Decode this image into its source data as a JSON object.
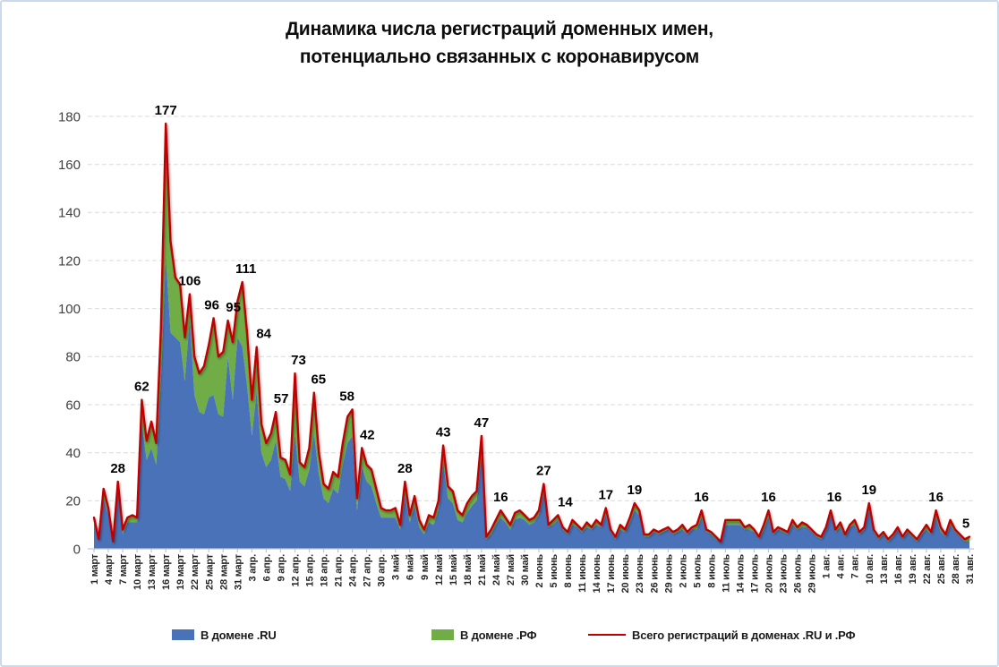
{
  "window": {
    "background": "#ffffff",
    "border_color": "#CBD9EC"
  },
  "chart_data": {
    "type": "area",
    "stacked": true,
    "title": "Динамика числа регистраций доменных имен, потенциально связанных с коронавирусом",
    "title_lines": [
      "Динамика числа регистраций доменных имен,",
      "потенциально связанных с коронавирусом"
    ],
    "xlabel": "",
    "ylabel": "",
    "ylim": [
      0,
      180
    ],
    "y_tick_step": 20,
    "grid": "horizontal-dashed",
    "legend_position": "bottom",
    "x_tick_interval_days": 3,
    "months": [
      {
        "name": "март",
        "days": 31
      },
      {
        "name": "апр.",
        "days": 30
      },
      {
        "name": "май",
        "days": 31
      },
      {
        "name": "июнь",
        "days": 30
      },
      {
        "name": "июль",
        "days": 31
      },
      {
        "name": "авг.",
        "days": 31
      }
    ],
    "x_first_label": "1 март",
    "x_last_label": "31 авг.",
    "series": [
      {
        "name": "В домене .RU",
        "type": "area",
        "color": "#4A72B8",
        "values": [
          11,
          3,
          21,
          14,
          2,
          24,
          6,
          11,
          11,
          11,
          52,
          37,
          42,
          35,
          70,
          122,
          90,
          88,
          86,
          70,
          96,
          64,
          57,
          56,
          63,
          64,
          56,
          55,
          80,
          62,
          88,
          84,
          68,
          47,
          66,
          40,
          34,
          37,
          45,
          30,
          29,
          24,
          48,
          28,
          26,
          33,
          48,
          31,
          21,
          19,
          25,
          23,
          35,
          44,
          47,
          16,
          34,
          28,
          26,
          19,
          13,
          13,
          13,
          13,
          8,
          22,
          11,
          18,
          9,
          6,
          11,
          10,
          16,
          36,
          21,
          19,
          12,
          11,
          15,
          18,
          20,
          39,
          4,
          6,
          10,
          13,
          11,
          8,
          12,
          13,
          12,
          10,
          11,
          14,
          23,
          9,
          10,
          12,
          8,
          6,
          10,
          9,
          7,
          9,
          8,
          10,
          9,
          14,
          7,
          4,
          8,
          7,
          11,
          16,
          14,
          5,
          5,
          7,
          6,
          7,
          8,
          6,
          7,
          8,
          6,
          8,
          8,
          13,
          7,
          6,
          4,
          3,
          10,
          10,
          10,
          10,
          8,
          8,
          7,
          4,
          8,
          13,
          6,
          8,
          7,
          6,
          10,
          8,
          9,
          9,
          7,
          5,
          4,
          8,
          14,
          7,
          9,
          5,
          9,
          10,
          6,
          8,
          16,
          7,
          4,
          6,
          3,
          5,
          8,
          4,
          7,
          5,
          3,
          6,
          8,
          6,
          13,
          7,
          5,
          10,
          7,
          5,
          3,
          3
        ]
      },
      {
        "name": "В домене .РФ",
        "type": "area",
        "color": "#70AD47",
        "values": [
          2,
          1,
          4,
          3,
          1,
          4,
          2,
          2,
          3,
          2,
          10,
          8,
          11,
          9,
          22,
          55,
          38,
          25,
          24,
          18,
          10,
          16,
          16,
          20,
          22,
          32,
          24,
          27,
          15,
          24,
          15,
          27,
          22,
          15,
          18,
          12,
          10,
          11,
          12,
          8,
          8,
          7,
          25,
          8,
          8,
          9,
          17,
          9,
          6,
          6,
          7,
          7,
          9,
          11,
          11,
          5,
          8,
          7,
          7,
          6,
          4,
          3,
          3,
          4,
          2,
          6,
          3,
          4,
          3,
          2,
          3,
          3,
          4,
          7,
          5,
          5,
          4,
          3,
          4,
          4,
          4,
          8,
          1,
          2,
          2,
          3,
          2,
          2,
          3,
          3,
          2,
          2,
          2,
          2,
          4,
          1,
          2,
          2,
          1,
          1,
          2,
          1,
          1,
          2,
          1,
          2,
          1,
          3,
          1,
          1,
          2,
          1,
          2,
          3,
          2,
          1,
          1,
          1,
          1,
          1,
          1,
          1,
          1,
          2,
          1,
          1,
          2,
          3,
          1,
          1,
          1,
          0,
          2,
          2,
          2,
          2,
          1,
          2,
          1,
          1,
          2,
          3,
          1,
          1,
          1,
          1,
          2,
          1,
          2,
          1,
          1,
          1,
          1,
          1,
          2,
          1,
          2,
          1,
          1,
          2,
          1,
          1,
          3,
          1,
          1,
          1,
          1,
          1,
          1,
          1,
          1,
          1,
          1,
          1,
          2,
          1,
          3,
          2,
          1,
          2,
          1,
          1,
          1,
          2
        ]
      },
      {
        "name": "Всего регистраций в доменах .RU и .РФ",
        "type": "line",
        "color": "#C00000",
        "derived": "sum of series .RU and .РФ"
      }
    ],
    "data_labels": [
      {
        "date": "6 март",
        "day_index": 5,
        "value": 28,
        "dx": 0
      },
      {
        "date": "11 март",
        "day_index": 10,
        "value": 62,
        "dx": 0
      },
      {
        "date": "16 март",
        "day_index": 15,
        "value": 177,
        "dx": 0
      },
      {
        "date": "21 март",
        "day_index": 20,
        "value": 106,
        "dx": 0
      },
      {
        "date": "26 март",
        "day_index": 25,
        "value": 96,
        "dx": -2
      },
      {
        "date": "29 март",
        "day_index": 28,
        "value": 95,
        "dx": 6
      },
      {
        "date": "1 апр.",
        "day_index": 31,
        "value": 111,
        "dx": 4
      },
      {
        "date": "4 апр.",
        "day_index": 34,
        "value": 84,
        "dx": 8
      },
      {
        "date": "8 апр.",
        "day_index": 38,
        "value": 57,
        "dx": 6
      },
      {
        "date": "12 апр.",
        "day_index": 42,
        "value": 73,
        "dx": 4
      },
      {
        "date": "16 апр.",
        "day_index": 46,
        "value": 65,
        "dx": 5
      },
      {
        "date": "24 апр.",
        "day_index": 54,
        "value": 58,
        "dx": -6
      },
      {
        "date": "26 апр.",
        "day_index": 56,
        "value": 42,
        "dx": 6
      },
      {
        "date": "5 май",
        "day_index": 65,
        "value": 28,
        "dx": 0
      },
      {
        "date": "13 май",
        "day_index": 73,
        "value": 43,
        "dx": 0
      },
      {
        "date": "21 май",
        "day_index": 81,
        "value": 47,
        "dx": 0
      },
      {
        "date": "25 май",
        "day_index": 85,
        "value": 16,
        "dx": 0
      },
      {
        "date": "3 июнь",
        "day_index": 94,
        "value": 27,
        "dx": 0
      },
      {
        "date": "6 июнь",
        "day_index": 97,
        "value": 14,
        "dx": 8
      },
      {
        "date": "16 июнь",
        "day_index": 107,
        "value": 17,
        "dx": 0
      },
      {
        "date": "22 июнь",
        "day_index": 113,
        "value": 19,
        "dx": 0
      },
      {
        "date": "6 июль",
        "day_index": 127,
        "value": 16,
        "dx": 0
      },
      {
        "date": "20 июль",
        "day_index": 141,
        "value": 16,
        "dx": 0
      },
      {
        "date": "2 авг.",
        "day_index": 154,
        "value": 16,
        "dx": 4
      },
      {
        "date": "10 авг.",
        "day_index": 162,
        "value": 19,
        "dx": 0
      },
      {
        "date": "24 авг.",
        "day_index": 176,
        "value": 16,
        "dx": 0
      },
      {
        "date": "31 авг.",
        "day_index": 183,
        "value": 5,
        "dx": -4
      }
    ],
    "axis_colors": {
      "gridline": "#D9D9D9",
      "axis_line": "#B7C7E0",
      "y_tick_text": "#404040",
      "x_tick_text": "#262626",
      "data_label_text": "#000000"
    }
  }
}
